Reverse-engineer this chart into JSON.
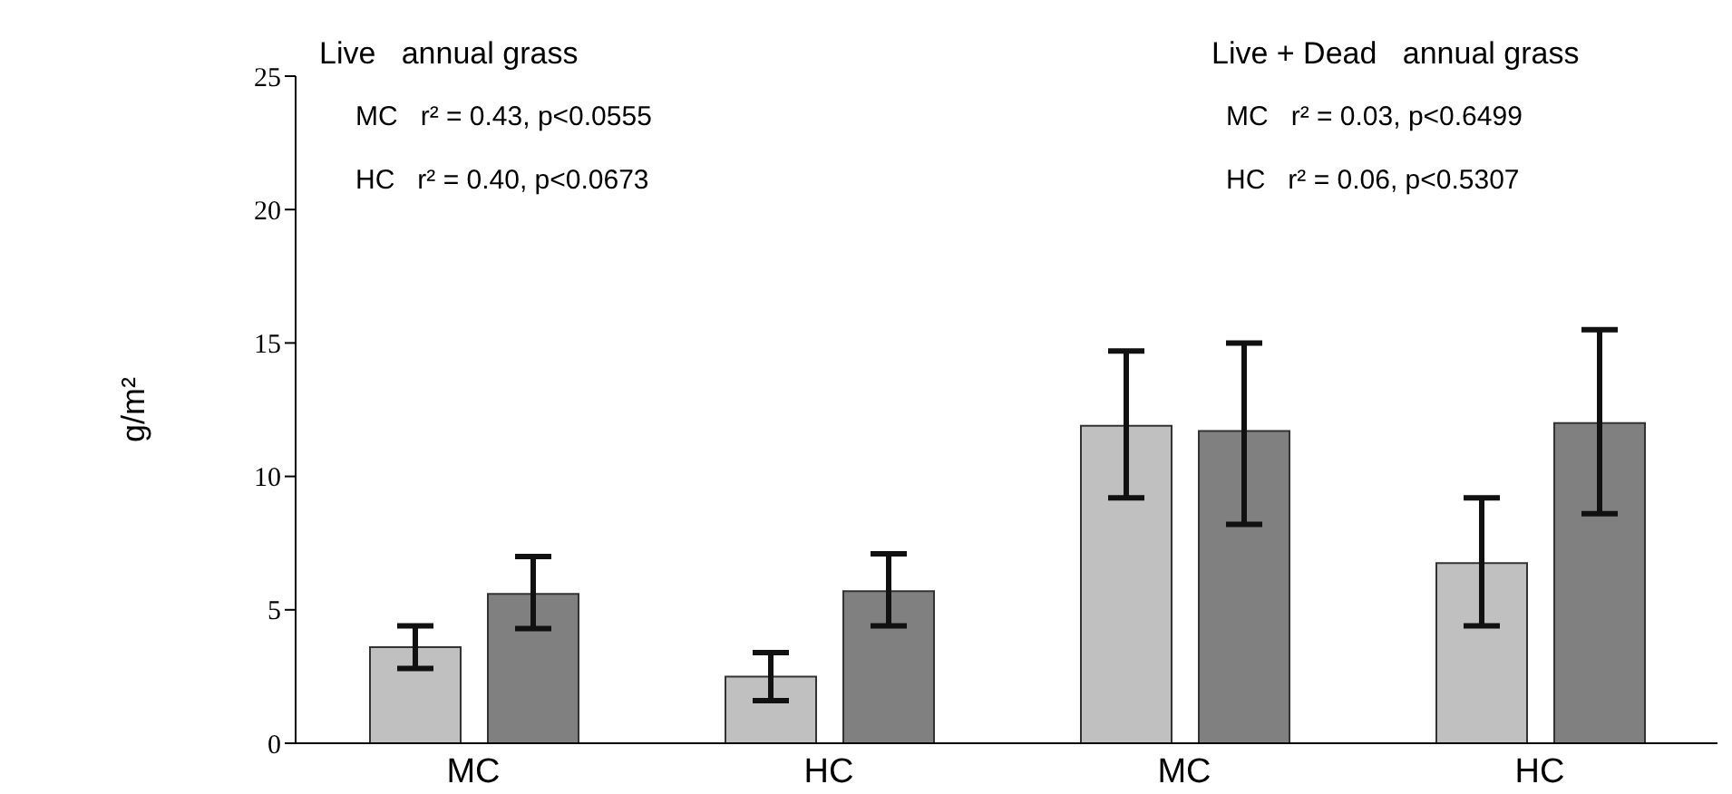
{
  "chart_data": {
    "type": "bar",
    "ylabel": "g/m²",
    "categories": [
      "MC",
      "HC",
      "MC",
      "HC"
    ],
    "series": [
      {
        "color": "#c0c0c0",
        "values": [
          3.6,
          2.5,
          11.9,
          6.75
        ],
        "errors": [
          [
            2.8,
            4.4
          ],
          [
            1.6,
            3.4
          ],
          [
            9.2,
            14.7
          ],
          [
            4.4,
            9.2
          ]
        ]
      },
      {
        "color": "#808080",
        "values": [
          5.6,
          5.7,
          11.7,
          12.0
        ],
        "errors": [
          [
            4.3,
            7.0
          ],
          [
            4.4,
            7.1
          ],
          [
            8.2,
            15.0
          ],
          [
            8.6,
            15.5
          ]
        ]
      }
    ],
    "ylim": [
      0,
      25
    ],
    "yticks": [
      0,
      5,
      10,
      15,
      20,
      25
    ],
    "grid": false,
    "annotations": [
      "Live   annual grass",
      "MC   r² = 0.43, p<0.0555",
      "HC   r² = 0.40, p<0.0673",
      "Live + Dead   annual grass",
      "MC   r² = 0.03, p<0.6499",
      "HC   r² = 0.06, p<0.5307"
    ]
  }
}
